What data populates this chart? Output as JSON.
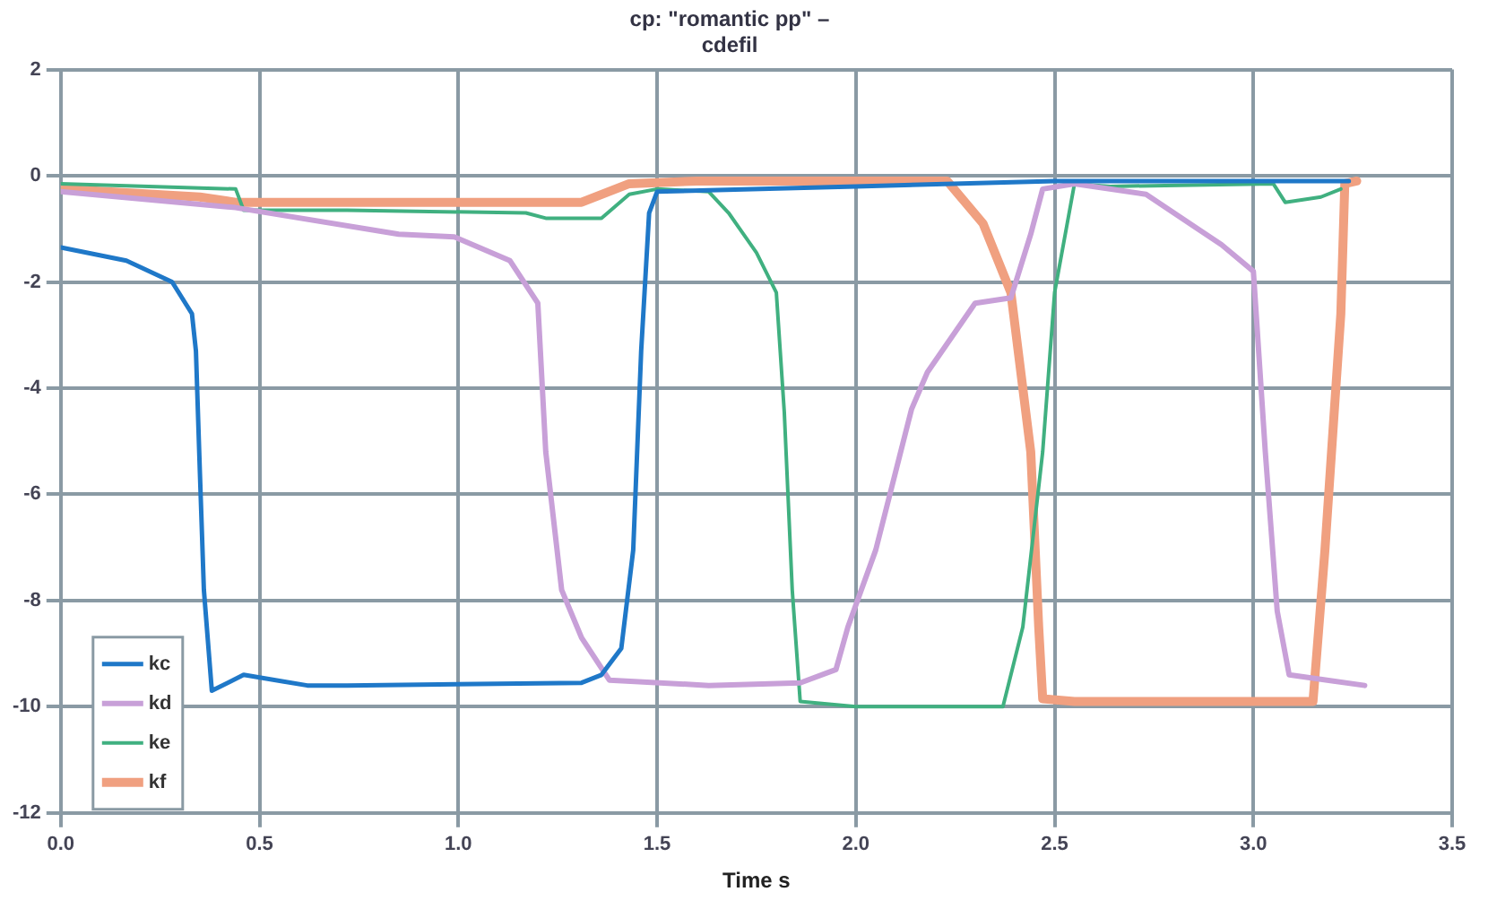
{
  "chart_data": {
    "type": "line",
    "title": "cp: \"romantic pp\" –\ncdefil",
    "xlabel": "Time s",
    "xlim": [
      0,
      3.5
    ],
    "xticks": [
      {
        "value": 0,
        "label": "0.0"
      },
      {
        "value": 0.5,
        "label": "0.5"
      },
      {
        "value": 1,
        "label": "1.0"
      },
      {
        "value": 1.5,
        "label": "1.5"
      },
      {
        "value": 2,
        "label": "2.0"
      },
      {
        "value": 2.5,
        "label": "2.5"
      },
      {
        "value": 3,
        "label": "3.0"
      },
      {
        "value": 3.5,
        "label": "3.5"
      }
    ],
    "ylim": [
      -12,
      2
    ],
    "yticks": [
      -12,
      -10,
      -8,
      -6,
      -4,
      -2,
      0,
      2
    ],
    "grid": true,
    "legend": "bottom left",
    "marker": "none",
    "line_style": "solid",
    "series": [
      {
        "name": "kc",
        "color": "#1f78c8",
        "x": [
          0,
          0.165,
          0.28,
          0.33,
          0.34,
          0.35,
          0.36,
          0.38,
          0.46,
          0.62,
          0.72,
          1.31,
          1.36,
          1.41,
          1.44,
          1.46,
          1.48,
          1.5,
          2.0,
          2.5,
          3.0,
          3.24
        ],
        "values": [
          -1.35,
          -1.6,
          -2.0,
          -2.6,
          -3.3,
          -5.6,
          -7.8,
          -9.7,
          -9.4,
          -9.6,
          -9.6,
          -9.55,
          -9.4,
          -8.9,
          -7.05,
          -3.3,
          -0.7,
          -0.3,
          -0.2,
          -0.1,
          -0.1,
          -0.1
        ]
      },
      {
        "name": "kd",
        "color": "#c8a0d8",
        "x": [
          0,
          0.44,
          0.85,
          0.99,
          1.13,
          1.2,
          1.22,
          1.26,
          1.31,
          1.38,
          1.63,
          1.86,
          1.95,
          1.98,
          2.05,
          2.14,
          2.18,
          2.3,
          2.39,
          2.44,
          2.47,
          2.55,
          2.73,
          2.92,
          3.0,
          3.03,
          3.06,
          3.09,
          3.28
        ],
        "values": [
          -0.3,
          -0.6,
          -1.1,
          -1.15,
          -1.6,
          -2.4,
          -5.2,
          -7.8,
          -8.7,
          -9.5,
          -9.6,
          -9.55,
          -9.3,
          -8.5,
          -7.05,
          -4.4,
          -3.7,
          -2.4,
          -2.3,
          -1.1,
          -0.25,
          -0.15,
          -0.35,
          -1.3,
          -1.8,
          -5.2,
          -8.2,
          -9.4,
          -9.6
        ]
      },
      {
        "name": "ke",
        "color": "#40b080",
        "x": [
          0,
          0.44,
          0.46,
          0.72,
          1.17,
          1.22,
          1.36,
          1.43,
          1.5,
          1.63,
          1.68,
          1.75,
          1.8,
          1.82,
          1.84,
          1.86,
          2.0,
          2.37,
          2.42,
          2.47,
          2.5,
          2.55,
          2.64,
          3.05,
          3.08,
          3.17,
          3.22
        ],
        "values": [
          -0.15,
          -0.25,
          -0.65,
          -0.65,
          -0.7,
          -0.8,
          -0.8,
          -0.35,
          -0.25,
          -0.3,
          -0.7,
          -1.45,
          -2.2,
          -4.45,
          -7.8,
          -9.9,
          -10,
          -10,
          -8.5,
          -5.2,
          -2.2,
          -0.15,
          -0.2,
          -0.15,
          -0.5,
          -0.4,
          -0.25
        ]
      },
      {
        "name": "kf",
        "color": "#f0a080",
        "x": [
          0,
          0.35,
          0.44,
          0.94,
          1.31,
          1.43,
          1.6,
          2.23,
          2.32,
          2.39,
          2.44,
          2.46,
          2.47,
          2.55,
          3.15,
          3.18,
          3.22,
          3.23,
          3.26
        ],
        "values": [
          -0.25,
          -0.4,
          -0.5,
          -0.5,
          -0.5,
          -0.15,
          -0.1,
          -0.1,
          -0.9,
          -2.2,
          -5.2,
          -8.5,
          -9.85,
          -9.9,
          -9.9,
          -7.05,
          -2.6,
          -0.15,
          -0.1
        ]
      }
    ]
  }
}
